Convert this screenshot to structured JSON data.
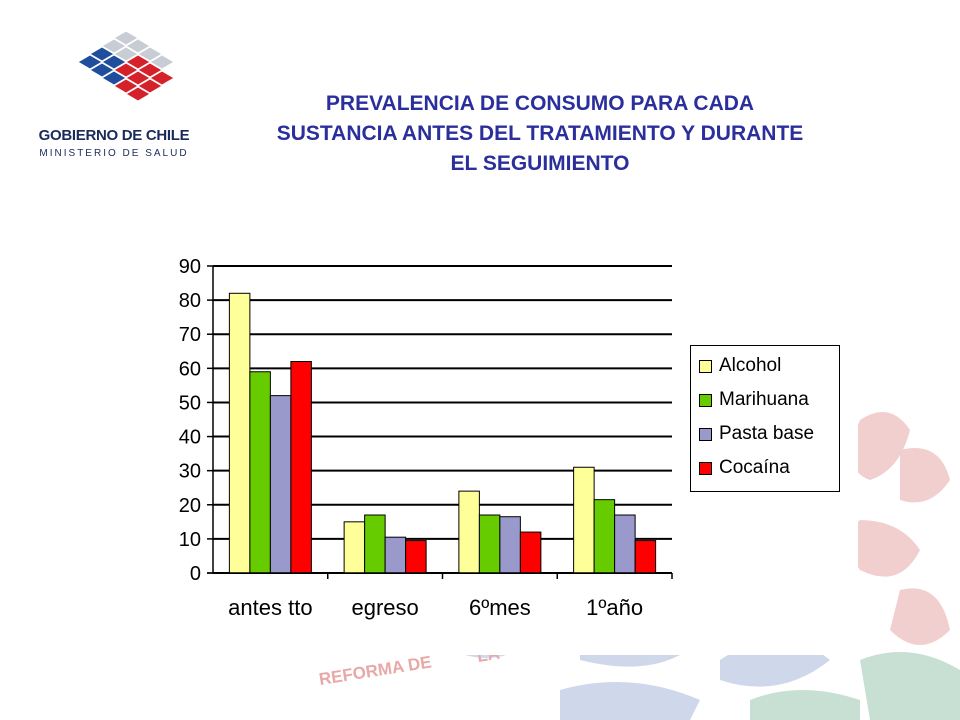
{
  "logo": {
    "line1": "GOBIERNO DE CHILE",
    "line2": "MINISTERIO DE SALUD",
    "colors": [
      "#c8ccd4",
      "#1f4e9c",
      "#d4212a"
    ]
  },
  "title": {
    "line1": "PREVALENCIA DE CONSUMO PARA CADA",
    "line2": "SUSTANCIA ANTES DEL TRATAMIENTO Y DURANTE",
    "line3": "EL SEGUIMIENTO"
  },
  "background": {
    "watermark_text": "REFORMA DE",
    "watermark_tail": "LA",
    "colors": [
      "#e8a8a8",
      "#a8b8dc",
      "#9cc8b0"
    ]
  },
  "chart_data": {
    "type": "bar",
    "title": "",
    "xlabel": "",
    "ylabel": "",
    "ylim": [
      0,
      90
    ],
    "yticks": [
      0,
      10,
      20,
      30,
      40,
      50,
      60,
      70,
      80,
      90
    ],
    "grid": true,
    "legend_position": "right",
    "categories": [
      "antes tto",
      "egreso",
      "6ºmes",
      "1ºaño"
    ],
    "series": [
      {
        "name": "Alcohol",
        "color": "#ffff99",
        "values": [
          82,
          15,
          24,
          31
        ]
      },
      {
        "name": "Marihuana",
        "color": "#66cc00",
        "values": [
          59,
          17,
          17,
          21.5
        ]
      },
      {
        "name": "Pasta base",
        "color": "#9999cc",
        "values": [
          52,
          10.5,
          16.5,
          17
        ]
      },
      {
        "name": "Cocaína",
        "color": "#ff0000",
        "values": [
          62,
          9.5,
          12,
          9.5
        ]
      }
    ]
  }
}
